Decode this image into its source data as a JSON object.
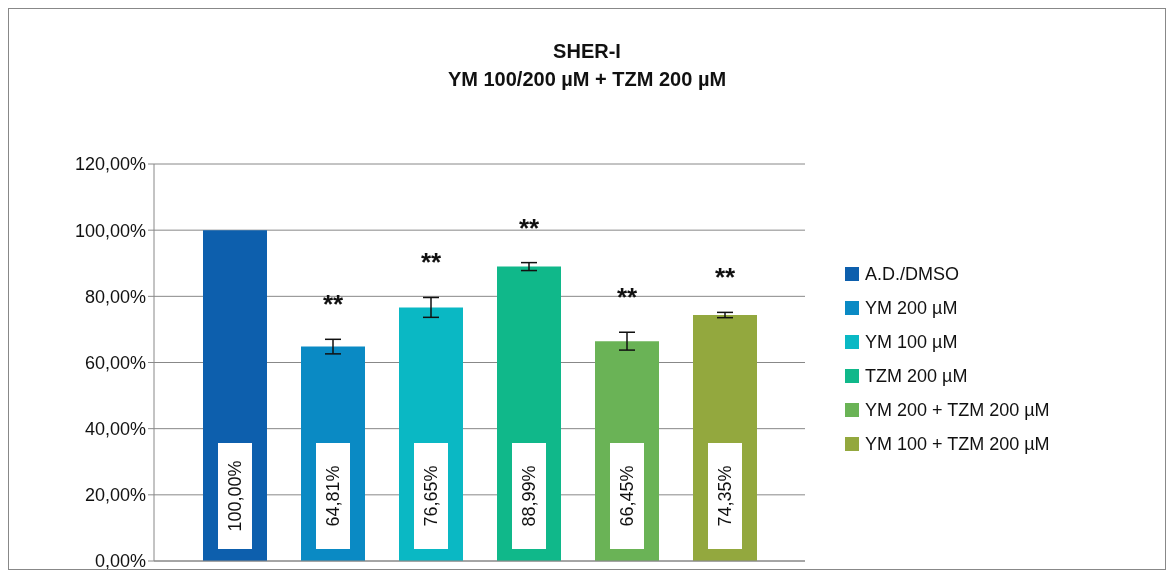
{
  "chart_data": {
    "type": "bar",
    "title": "SHER-I",
    "subtitle": "YM 100/200 µM + TZM 200 µM",
    "categories": [
      null
    ],
    "series": [
      {
        "name": "A.D./DMSO",
        "color": "#0d5fad",
        "values": [
          100
        ],
        "value_labels": [
          "100,00%"
        ]
      },
      {
        "name": "YM 200 µM",
        "color": "#0a8ac4",
        "values": [
          64.81
        ],
        "value_labels": [
          "64,81%"
        ],
        "errors": [
          2.2
        ]
      },
      {
        "name": "YM 100 µM",
        "color": "#0ab8c4",
        "values": [
          76.65
        ],
        "value_labels": [
          "76,65%"
        ],
        "errors": [
          3
        ]
      },
      {
        "name": "TZM 200 µM",
        "color": "#10b88a",
        "values": [
          88.99
        ],
        "value_labels": [
          "88,99%"
        ],
        "errors": [
          1.2
        ]
      },
      {
        "name": "YM 200 + TZM 200 µM",
        "color": "#6ab356",
        "values": [
          66.45
        ],
        "value_labels": [
          "66,45%"
        ],
        "errors": [
          2.7
        ]
      },
      {
        "name": "YM 100 + TZM 200 µM",
        "color": "#93a83e",
        "values": [
          74.35
        ],
        "value_labels": [
          "74,35%"
        ],
        "errors": [
          0.8
        ]
      }
    ],
    "annotations": [
      "**",
      "**",
      "**",
      "**",
      "**"
    ],
    "ylim": [
      0,
      120
    ],
    "yticks": [
      {
        "value": 0,
        "label": "0,00%"
      },
      {
        "value": 20,
        "label": "20,00%"
      },
      {
        "value": 40,
        "label": "40,00%"
      },
      {
        "value": 60,
        "label": "60,00%"
      },
      {
        "value": 80,
        "label": "80,00%"
      },
      {
        "value": 100,
        "label": "100,00%"
      },
      {
        "value": 120,
        "label": "120,00%"
      }
    ],
    "grid": "y",
    "legend": "right"
  }
}
